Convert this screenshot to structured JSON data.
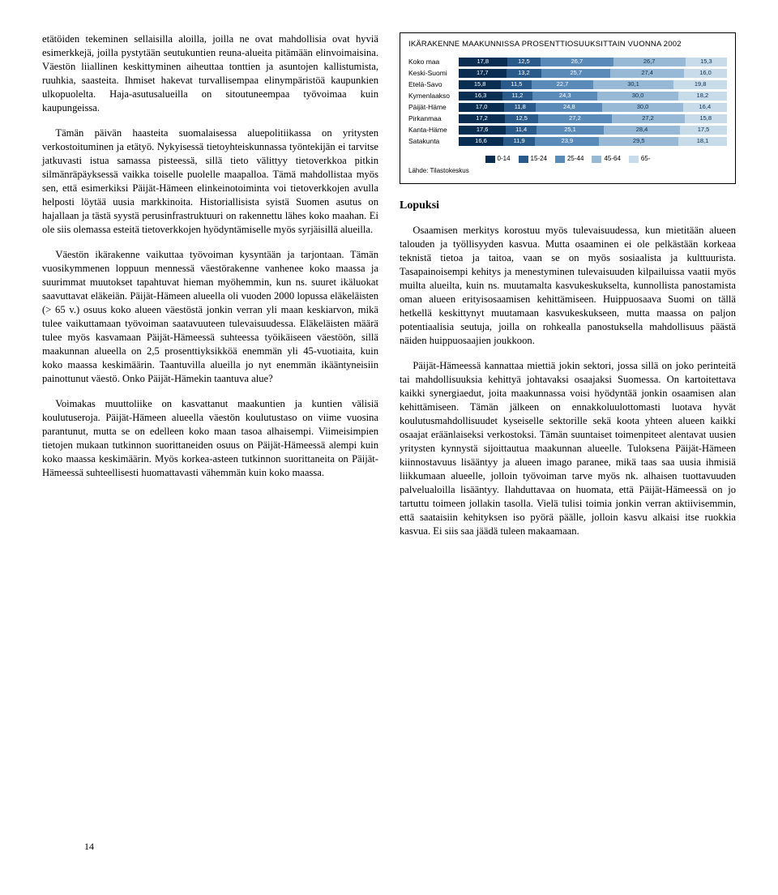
{
  "left": {
    "p1": "etätöiden tekeminen sellaisilla aloilla, joilla ne ovat mahdollisia ovat hyviä esimerkkejä, joilla pystytään seutukuntien reuna-alueita pitämään elinvoimaisina. Väestön liiallinen keskittyminen aiheuttaa tonttien ja asuntojen kallistumista, ruuhkia, saasteita. Ihmiset hakevat turvallisempaa elinympäristöä kaupunkien ulkopuolelta. Haja-asutusalueilla on sitoutuneempaa työvoimaa kuin kaupungeissa.",
    "p2": "Tämän päivän haasteita suomalaisessa aluepolitiikassa on yritysten verkostoituminen ja etätyö. Nykyisessä tietoyhteiskunnassa työntekijän ei tarvitse jatkuvasti istua samassa pisteessä, sillä tieto välittyy tietoverkkoa pitkin silmänräpäyksessä vaikka toiselle puolelle maapalloa. Tämä mahdollistaa myös sen, että esimerkiksi Päijät-Hämeen elinkeinotoiminta voi tietoverkkojen avulla helposti löytää uusia markkinoita. Historiallisista syistä Suomen asutus on hajallaan ja tästä syystä perusinfrastruktuuri on rakennettu lähes koko maahan. Ei ole siis olemassa esteitä tietoverkkojen hyödyntämiselle myös syrjäisillä alueilla.",
    "p3": "Väestön ikärakenne vaikuttaa työvoiman kysyntään ja tarjontaan. Tämän vuosikymmenen loppuun mennessä väestörakenne vanhenee koko maassa ja suurimmat muutokset tapahtuvat hieman myöhemmin, kun ns. suuret ikäluokat saavuttavat eläkeiän. Päijät-Hämeen alueella oli vuoden 2000 lopussa eläkeläisten (> 65 v.) osuus koko alueen väestöstä jonkin verran yli maan keskiarvon, mikä tulee vaikuttamaan työvoiman saatavuuteen tulevaisuudessa. Eläkeläisten määrä tulee myös kasvamaan Päijät-Hämeessä suhteessa työikäiseen väestöön, sillä maakunnan alueella on 2,5 prosenttiyksikköä enemmän yli 45-vuotiaita, kuin koko maassa keskimäärin. Taantuvilla alueilla jo nyt enemmän ikääntyneisiin painottunut väestö. Onko Päijät-Hämekin taantuva alue?",
    "p4": "Voimakas muuttoliike on kasvattanut maakuntien ja kuntien välisiä koulutuseroja. Päijät-Hämeen alueella väestön koulutustaso on viime vuosina parantunut, mutta se on edelleen koko maan tasoa alhaisempi. Viimeisimpien tietojen mukaan tutkinnon suorittaneiden osuus on Päijät-Hämeessä alempi kuin koko maassa keskimäärin. Myös korkea-asteen tutkinnon suorittaneita on Päijät-Hämeessä suhteellisesti huomattavasti vähemmän kuin koko maassa."
  },
  "chart": {
    "title": "IKÄRAKENNE MAAKUNNISSA PROSENTTIOSUUKSITTAIN VUONNA 2002",
    "colors": [
      "#0a2e52",
      "#2a5a8a",
      "#5a8ab8",
      "#97b9d5",
      "#c8dbe8"
    ],
    "legend": [
      "0-14",
      "15-24",
      "25-44",
      "45-64",
      "65-"
    ],
    "rows": [
      {
        "label": "Koko maa",
        "v": [
          17.8,
          12.5,
          26.7,
          26.7,
          15.3
        ]
      },
      {
        "label": "Keski-Suomi",
        "v": [
          17.7,
          13.2,
          25.7,
          27.4,
          16.0
        ]
      },
      {
        "label": "Etelä-Savo",
        "v": [
          15.8,
          11.5,
          22.7,
          30.1,
          19.8
        ]
      },
      {
        "label": "Kymenlaakso",
        "v": [
          16.3,
          11.2,
          24.3,
          30.0,
          18.2
        ]
      },
      {
        "label": "Päijät-Häme",
        "v": [
          17.0,
          11.8,
          24.8,
          30.0,
          16.4
        ]
      },
      {
        "label": "Pirkanmaa",
        "v": [
          17.2,
          12.5,
          27.2,
          27.2,
          15.8
        ]
      },
      {
        "label": "Kanta-Häme",
        "v": [
          17.6,
          11.4,
          25.1,
          28.4,
          17.5
        ]
      },
      {
        "label": "Satakunta",
        "v": [
          16.6,
          11.9,
          23.9,
          29.5,
          18.1
        ]
      }
    ],
    "source": "Lähde: Tilastokeskus"
  },
  "right": {
    "heading": "Lopuksi",
    "p1": "Osaamisen merkitys korostuu myös tulevaisuudessa, kun mietitään alueen talouden ja työllisyyden kasvua. Mutta osaaminen ei ole pelkästään korkeaa teknistä tietoa ja taitoa, vaan se on myös sosiaalista ja kulttuurista. Tasapainoisempi kehitys ja menestyminen tulevaisuuden kilpailuissa vaatii myös muilta alueilta, kuin ns. muutamalta kasvukeskukselta, kunnollista panostamista oman alueen erityisosaamisen kehittämiseen. Huippuosaava Suomi on tällä hetkellä keskittynyt muutamaan kasvukeskukseen, mutta maassa on paljon potentiaalisia seutuja, joilla on rohkealla panostuksella mahdollisuus päästä näiden huippuosaajien joukkoon.",
    "p2": "Päijät-Hämeessä kannattaa miettiä jokin sektori, jossa sillä on joko perinteitä tai mahdollisuuksia kehittyä johtavaksi osaajaksi Suomessa. On kartoitettava kaikki synergiaedut, joita maakunnassa voisi hyödyntää jonkin osaamisen alan kehittämiseen. Tämän jälkeen on ennakkoluulottomasti luotava hyvät koulutusmahdollisuudet kyseiselle sektorille sekä koota yhteen alueen kaikki osaajat eräänlaiseksi verkostoksi. Tämän suuntaiset toimenpiteet alentavat uusien yritysten kynnystä sijoittautua maakunnan alueelle. Tuloksena Päijät-Hämeen kiinnostavuus lisääntyy ja alueen imago paranee, mikä taas saa uusia ihmisiä liikkumaan alueelle, jolloin työvoiman tarve myös nk. alhaisen tuottavuuden palvelualoilla lisääntyy. Ilahduttavaa on huomata, että Päijät-Hämeessä on jo tartuttu toimeen jollakin tasolla. Vielä tulisi toimia jonkin verran aktiivisemmin, että saataisiin kehityksen iso pyörä päälle, jolloin kasvu alkaisi itse ruokkia kasvua. Ei siis saa jäädä tuleen makaamaan."
  },
  "pageNumber": "14"
}
